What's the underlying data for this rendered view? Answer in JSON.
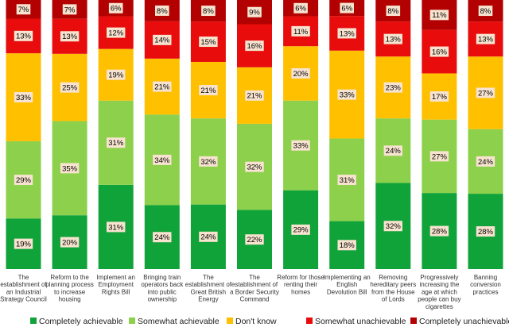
{
  "chart_data": {
    "type": "bar",
    "stacked": true,
    "orientation": "vertical",
    "percent_stacked": true,
    "categories": [
      "The establishment of an Industrial Strategy Council",
      "Reform to the planning process to increase housing",
      "Implement an Employment Rights Bill",
      "Bringing train operators back into public ownership",
      "The establishment of Great British Energy",
      "The establishment of a Border Security Command",
      "Reform for those renting their homes",
      "Implementing an English Devolution Bill",
      "Removing hereditary peers from the House of Lords",
      "Progressively increasing the age at which people can buy cigarettes",
      "Banning conversion practices"
    ],
    "category_lines": [
      [
        "The",
        "establishment of",
        "an Industrial",
        "Strategy Council"
      ],
      [
        "Reform to the",
        "planning process",
        "to increase",
        "housing"
      ],
      [
        "Implement an",
        "Employment",
        "Rights Bill"
      ],
      [
        "Bringing train",
        "operators back",
        "into public",
        "ownership"
      ],
      [
        "The",
        "establishment of",
        "Great British",
        "Energy"
      ],
      [
        "The",
        "establishment of",
        "a Border Security",
        "Command"
      ],
      [
        "Reform for those",
        "renting their",
        "homes"
      ],
      [
        "Implementing an",
        "English",
        "Devolution Bill"
      ],
      [
        "Removing",
        "hereditary peers",
        "from the House",
        "of Lords"
      ],
      [
        "Progressively",
        "increasing the",
        "age at which",
        "people can buy",
        "cigarettes"
      ],
      [
        "Banning",
        "conversion",
        "practices"
      ]
    ],
    "series": [
      {
        "name": "Completely achievable",
        "color": "#10A33A",
        "values": [
          19,
          20,
          31,
          24,
          24,
          22,
          29,
          18,
          32,
          28,
          28
        ]
      },
      {
        "name": "Somewhat achievable",
        "color": "#8CD04B",
        "values": [
          29,
          35,
          31,
          34,
          32,
          32,
          33,
          31,
          24,
          27,
          24
        ]
      },
      {
        "name": "Don't know",
        "color": "#FFC000",
        "values": [
          33,
          25,
          19,
          21,
          21,
          21,
          20,
          33,
          23,
          17,
          27
        ]
      },
      {
        "name": "Somewhat unachievable",
        "color": "#E80C0C",
        "values": [
          13,
          13,
          12,
          14,
          15,
          16,
          11,
          13,
          13,
          16,
          13
        ]
      },
      {
        "name": "Completely unachievable",
        "color": "#B30000",
        "values": [
          7,
          7,
          6,
          8,
          8,
          9,
          6,
          6,
          8,
          11,
          8
        ]
      }
    ],
    "value_suffix": "%",
    "label_box_color": "#F7E3CF",
    "legend_position": "bottom",
    "grid": false
  }
}
